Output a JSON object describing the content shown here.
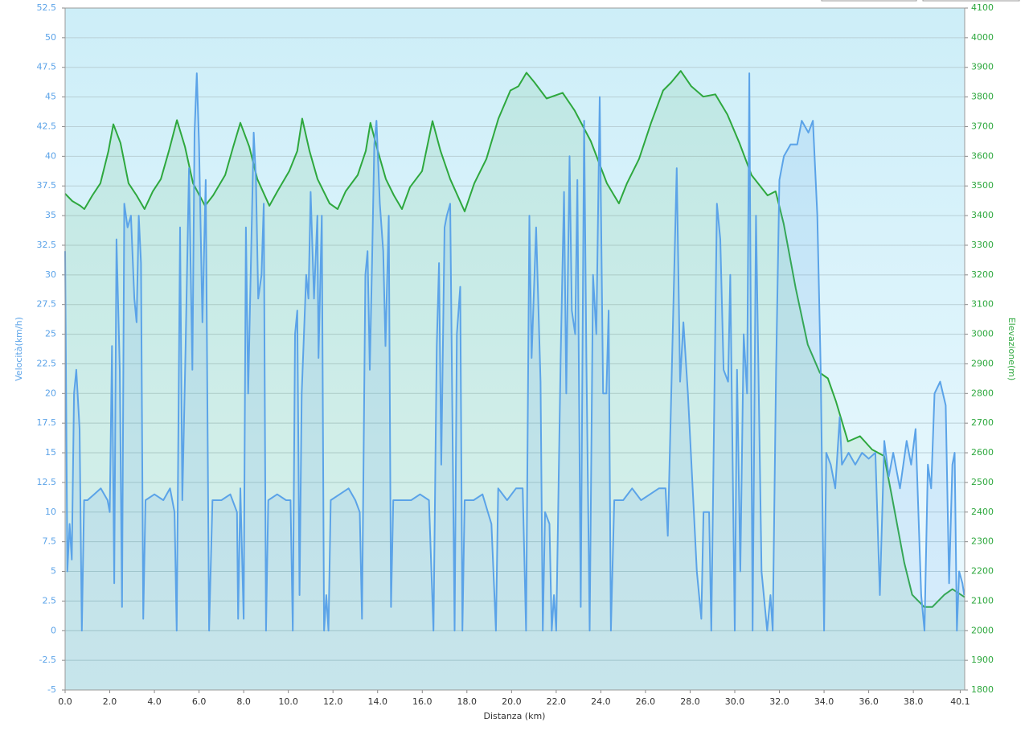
{
  "chart_data": {
    "type": "line",
    "xlabel": "Distanza  (km)",
    "ylabel": "Velocità(km/h)",
    "y2label": "Elevazione(m)",
    "xlim": [
      0,
      40.3
    ],
    "ylim": [
      -5,
      52.5
    ],
    "y2lim": [
      1800,
      4100
    ],
    "grid": true,
    "xticks": [
      {
        "value": 0,
        "label": "0.0"
      },
      {
        "value": 2,
        "label": "2.0"
      },
      {
        "value": 4,
        "label": "4.0"
      },
      {
        "value": 6,
        "label": "6.0"
      },
      {
        "value": 8,
        "label": "8.0"
      },
      {
        "value": 10,
        "label": "10.0"
      },
      {
        "value": 12,
        "label": "12.0"
      },
      {
        "value": 14,
        "label": "14.0"
      },
      {
        "value": 16,
        "label": "16.0"
      },
      {
        "value": 18,
        "label": "18.0"
      },
      {
        "value": 20,
        "label": "20.0"
      },
      {
        "value": 22,
        "label": "22.0"
      },
      {
        "value": 24,
        "label": "24.0"
      },
      {
        "value": 26,
        "label": "26.0"
      },
      {
        "value": 28,
        "label": "28.0"
      },
      {
        "value": 30,
        "label": "30.0"
      },
      {
        "value": 32,
        "label": "32.0"
      },
      {
        "value": 34,
        "label": "34.0"
      },
      {
        "value": 36,
        "label": "36.0"
      },
      {
        "value": 38,
        "label": "38.0"
      },
      40.1
    ],
    "yticks": [
      -5,
      -2.5,
      0,
      2.5,
      5,
      7.5,
      10,
      12.5,
      15,
      17.5,
      20,
      22.5,
      25,
      27.5,
      30,
      32.5,
      35,
      37.5,
      40,
      42.5,
      45,
      47.5,
      50,
      52.5
    ],
    "y2ticks": [
      1800,
      1900,
      2000,
      2100,
      2200,
      2300,
      2400,
      2500,
      2600,
      2700,
      2800,
      2900,
      3000,
      3100,
      3200,
      3300,
      3400,
      3500,
      3600,
      3700,
      3800,
      3900,
      4000,
      4100
    ],
    "series": [
      {
        "color": "#5ba3e8",
        "axis": "y",
        "x": [
          0,
          0.1,
          0.2,
          0.3,
          0.4,
          0.5,
          0.65,
          0.75,
          0.85,
          1.0,
          1.3,
          1.6,
          1.9,
          2.0,
          2.1,
          2.2,
          2.3,
          2.45,
          2.55,
          2.65,
          2.8,
          2.95,
          3.1,
          3.2,
          3.3,
          3.4,
          3.5,
          3.6,
          4.0,
          4.4,
          4.7,
          4.9,
          5.0,
          5.15,
          5.25,
          5.4,
          5.55,
          5.7,
          5.8,
          5.9,
          6.0,
          6.15,
          6.3,
          6.45,
          6.6,
          7.0,
          7.4,
          7.7,
          7.75,
          7.85,
          8.0,
          8.1,
          8.2,
          8.3,
          8.45,
          8.55,
          8.65,
          8.8,
          8.9,
          9.0,
          9.1,
          9.5,
          9.9,
          10.1,
          10.2,
          10.3,
          10.4,
          10.5,
          10.6,
          10.8,
          10.9,
          11.0,
          11.15,
          11.3,
          11.35,
          11.5,
          11.6,
          11.7,
          11.8,
          11.9,
          12.3,
          12.7,
          13.0,
          13.2,
          13.3,
          13.45,
          13.55,
          13.65,
          13.75,
          13.85,
          13.95,
          14.1,
          14.25,
          14.35,
          14.5,
          14.6,
          14.7,
          15.1,
          15.5,
          15.9,
          16.3,
          16.5,
          16.65,
          16.75,
          16.85,
          17.0,
          17.1,
          17.25,
          17.45,
          17.55,
          17.7,
          17.8,
          17.9,
          18.3,
          18.7,
          19.1,
          19.3,
          19.4,
          19.8,
          20.2,
          20.5,
          20.65,
          20.8,
          20.9,
          21.1,
          21.3,
          21.4,
          21.5,
          21.7,
          21.8,
          21.9,
          22.0,
          22.2,
          22.35,
          22.45,
          22.6,
          22.7,
          22.85,
          22.95,
          23.1,
          23.25,
          23.35,
          23.5,
          23.65,
          23.8,
          23.95,
          24.1,
          24.25,
          24.35,
          24.45,
          24.6,
          25.0,
          25.4,
          25.8,
          26.2,
          26.6,
          26.8,
          26.9,
          27.0,
          27.4,
          27.55,
          27.7,
          27.9,
          28.3,
          28.5,
          28.6,
          28.85,
          28.95,
          29.2,
          29.35,
          29.5,
          29.7,
          29.8,
          30.0,
          30.1,
          30.25,
          30.4,
          30.55,
          30.65,
          30.8,
          30.95,
          31.05,
          31.2,
          31.35,
          31.45,
          31.6,
          31.7,
          31.85,
          32.0,
          32.2,
          32.5,
          32.8,
          33.0,
          33.3,
          33.5,
          33.7,
          33.85,
          34.0,
          34.1,
          34.3,
          34.5,
          34.7,
          34.8,
          35.1,
          35.4,
          35.7,
          36.0,
          36.3,
          36.5,
          36.7,
          36.9,
          37.1,
          37.4,
          37.7,
          37.9,
          38.1,
          38.35,
          38.5,
          38.65,
          38.8,
          38.95,
          39.2,
          39.45,
          39.6,
          39.75,
          39.85,
          39.95,
          40.05,
          40.2,
          40.28
        ],
        "values": [
          32,
          5,
          9,
          6,
          20,
          22,
          17,
          0,
          11,
          11,
          11.5,
          12,
          11,
          10,
          24,
          4,
          33,
          22,
          2,
          36,
          34,
          35,
          28,
          26,
          35,
          31,
          1,
          11,
          11.5,
          11,
          12,
          10,
          0,
          34,
          11,
          24,
          39,
          22,
          42,
          47,
          41,
          26,
          38,
          0,
          11,
          11,
          11.5,
          10,
          1,
          12,
          1,
          34,
          20,
          29,
          42,
          38,
          28,
          30,
          36,
          0,
          11,
          11.5,
          11,
          11,
          0,
          25,
          27,
          3,
          20,
          30,
          28,
          37,
          28,
          35,
          23,
          35,
          0,
          3,
          0,
          11,
          11.5,
          12,
          11,
          10,
          1,
          30,
          32,
          22,
          31,
          41,
          43,
          36,
          32,
          24,
          35,
          2,
          11,
          11,
          11,
          11.5,
          11,
          0,
          24,
          31,
          14,
          34,
          35,
          36,
          0,
          25,
          29,
          0,
          11,
          11,
          11.5,
          9,
          0,
          12,
          11,
          12,
          12,
          0,
          35,
          23,
          34,
          21,
          0,
          10,
          9,
          0,
          3,
          0,
          23,
          37,
          20,
          40,
          27,
          25,
          38,
          2,
          43,
          23,
          0,
          30,
          25,
          45,
          20,
          20,
          27,
          0,
          11,
          11,
          12,
          11,
          11.5,
          12,
          12,
          12,
          8,
          39,
          21,
          26,
          20,
          5,
          1,
          10,
          10,
          0,
          36,
          33,
          22,
          21,
          30,
          0,
          22,
          5,
          25,
          20,
          47,
          0,
          35,
          23,
          5,
          2,
          0,
          3,
          0,
          22,
          38,
          40,
          41,
          41,
          43,
          42,
          43,
          35,
          22,
          0,
          15,
          14,
          12,
          18,
          14,
          15,
          14,
          15,
          14.5,
          15,
          3,
          16,
          13,
          15,
          12,
          16,
          14,
          17,
          3,
          0,
          14,
          12,
          20,
          21,
          19,
          4,
          14,
          15,
          0,
          5,
          4,
          3
        ]
      },
      {
        "color": "#2ea83e",
        "axis": "y2",
        "x": [
          0.0,
          0.32,
          0.68,
          0.86,
          1.22,
          1.58,
          1.94,
          2.16,
          2.48,
          2.84,
          3.2,
          3.56,
          3.93,
          4.29,
          4.65,
          5.01,
          5.37,
          5.73,
          6.27,
          6.63,
          7.17,
          7.53,
          7.85,
          8.25,
          8.61,
          9.15,
          9.51,
          10.04,
          10.4,
          10.62,
          10.95,
          11.31,
          11.85,
          12.21,
          12.57,
          13.11,
          13.47,
          13.68,
          14.01,
          14.37,
          14.73,
          15.09,
          15.45,
          15.99,
          16.46,
          16.82,
          17.25,
          17.9,
          18.33,
          18.87,
          19.41,
          19.95,
          20.31,
          20.67,
          21.03,
          21.57,
          22.29,
          22.83,
          23.55,
          24.27,
          24.81,
          25.17,
          25.71,
          26.25,
          26.79,
          27.15,
          27.58,
          28.05,
          28.59,
          29.13,
          29.67,
          30.21,
          30.75,
          31.47,
          31.83,
          32.19,
          32.73,
          33.27,
          33.81,
          34.17,
          34.53,
          35.07,
          35.61,
          36.15,
          36.69,
          37.05,
          37.59,
          37.95,
          38.49,
          38.85,
          39.39,
          39.75,
          40.3
        ],
        "values": [
          3474,
          3449,
          3433,
          3422,
          3468,
          3509,
          3618,
          3708,
          3645,
          3509,
          3468,
          3422,
          3482,
          3523,
          3618,
          3722,
          3632,
          3509,
          3433,
          3468,
          3537,
          3632,
          3713,
          3632,
          3523,
          3433,
          3482,
          3550,
          3618,
          3727,
          3618,
          3523,
          3441,
          3422,
          3482,
          3537,
          3618,
          3713,
          3618,
          3523,
          3468,
          3422,
          3496,
          3550,
          3719,
          3618,
          3523,
          3414,
          3509,
          3591,
          3727,
          3822,
          3836,
          3882,
          3849,
          3795,
          3814,
          3754,
          3651,
          3509,
          3441,
          3509,
          3591,
          3713,
          3822,
          3849,
          3888,
          3836,
          3801,
          3809,
          3741,
          3645,
          3537,
          3468,
          3482,
          3373,
          3155,
          2965,
          2870,
          2851,
          2774,
          2638,
          2656,
          2611,
          2589,
          2448,
          2230,
          2121,
          2080,
          2080,
          2121,
          2140,
          2113
        ]
      }
    ]
  }
}
